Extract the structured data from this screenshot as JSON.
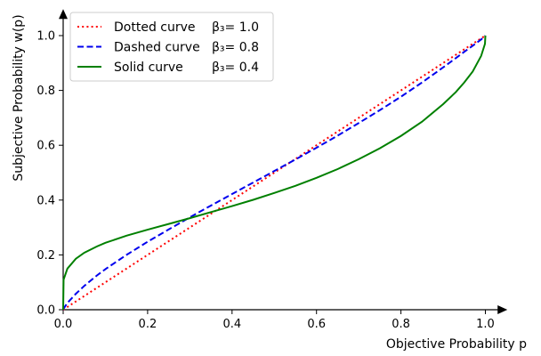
{
  "chart_data": {
    "type": "line",
    "xlabel": "Objective Probability p",
    "ylabel": "Subjective Probability w(p)",
    "xlim": [
      0,
      1.05
    ],
    "ylim": [
      0,
      1.1
    ],
    "xticks": [
      "0.0",
      "0.2",
      "0.4",
      "0.6",
      "0.8",
      "1.0"
    ],
    "yticks": [
      "0.0",
      "0.2",
      "0.4",
      "0.6",
      "0.8",
      "1.0"
    ],
    "grid": false,
    "legend_position": "top-left",
    "x": [
      0,
      0.001,
      0.01,
      0.03,
      0.05,
      0.08,
      0.1,
      0.15,
      0.2,
      0.25,
      0.3,
      0.35,
      0.4,
      0.45,
      0.5,
      0.55,
      0.6,
      0.65,
      0.7,
      0.75,
      0.8,
      0.85,
      0.9,
      0.93,
      0.95,
      0.97,
      0.99,
      0.999,
      1
    ],
    "series": [
      {
        "name": "Dotted curve",
        "beta_label": "β₃= 1.0",
        "color": "#ff0000",
        "style": "dotted",
        "values": [
          0,
          0.001,
          0.01,
          0.03,
          0.05,
          0.08,
          0.1,
          0.15,
          0.2,
          0.25,
          0.3,
          0.35,
          0.4,
          0.45,
          0.5,
          0.55,
          0.6,
          0.65,
          0.7,
          0.75,
          0.8,
          0.85,
          0.9,
          0.93,
          0.95,
          0.97,
          0.99,
          0.999,
          1
        ]
      },
      {
        "name": "Dashed curve",
        "beta_label": "β₃= 0.8",
        "color": "#0000ee",
        "style": "dashed",
        "values": [
          0,
          0.004,
          0.025,
          0.058,
          0.087,
          0.125,
          0.148,
          0.2,
          0.248,
          0.293,
          0.337,
          0.38,
          0.422,
          0.464,
          0.506,
          0.548,
          0.591,
          0.635,
          0.681,
          0.728,
          0.777,
          0.829,
          0.884,
          0.918,
          0.941,
          0.963,
          0.986,
          0.998,
          1
        ]
      },
      {
        "name": "Solid curve",
        "beta_label": "β₃= 0.4",
        "color": "#008000",
        "style": "solid",
        "values": [
          0,
          0.11,
          0.15,
          0.186,
          0.208,
          0.231,
          0.244,
          0.27,
          0.292,
          0.313,
          0.334,
          0.356,
          0.378,
          0.401,
          0.426,
          0.452,
          0.481,
          0.513,
          0.549,
          0.589,
          0.634,
          0.686,
          0.75,
          0.794,
          0.829,
          0.869,
          0.926,
          0.97,
          1
        ]
      }
    ]
  }
}
